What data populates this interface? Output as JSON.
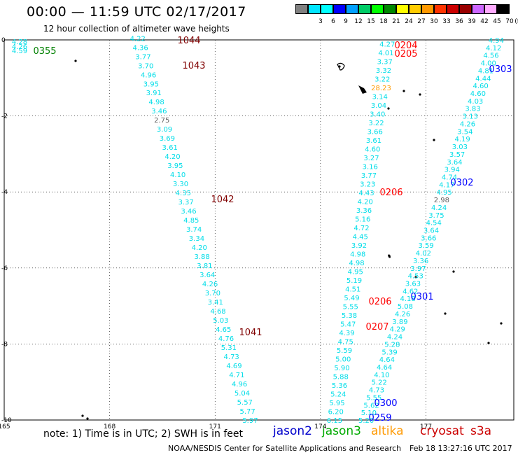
{
  "header": {
    "title": "00:00 — 11:59 UTC 02/17/2017",
    "subtitle": "12 hour collection of altimeter wave heights"
  },
  "scale": {
    "unit": "(ft)",
    "bins": [
      {
        "label": "",
        "color": "#808080"
      },
      {
        "label": "3",
        "color": "#00e5ff"
      },
      {
        "label": "6",
        "color": "#00ffff"
      },
      {
        "label": "9",
        "color": "#0000ff"
      },
      {
        "label": "12",
        "color": "#00a0ff"
      },
      {
        "label": "15",
        "color": "#00cc66"
      },
      {
        "label": "18",
        "color": "#00ff00"
      },
      {
        "label": "21",
        "color": "#008800"
      },
      {
        "label": "24",
        "color": "#ffff00"
      },
      {
        "label": "27",
        "color": "#ffcc00"
      },
      {
        "label": "30",
        "color": "#ff9900"
      },
      {
        "label": "33",
        "color": "#ff3300"
      },
      {
        "label": "36",
        "color": "#cc0000"
      },
      {
        "label": "39",
        "color": "#990000"
      },
      {
        "label": "42",
        "color": "#cc66ff"
      },
      {
        "label": "45",
        "color": "#ffaaff"
      },
      {
        "label": "70",
        "color": "#000000"
      }
    ]
  },
  "axes": {
    "x_ticks": [
      "165",
      "168",
      "171",
      "174",
      "177"
    ],
    "y_ticks": [
      "0",
      "-2",
      "-4",
      "-6",
      "-8",
      "-10"
    ],
    "x_range": [
      165,
      179.5
    ],
    "y_range": [
      0,
      -10
    ],
    "grid": true
  },
  "tracks": [
    {
      "satellite": "jason2",
      "lon_start": 168.8,
      "lat_start": 0.05,
      "lon_end": 172.0,
      "lat_end": -10.0,
      "values": [
        "4.22",
        "4.36",
        "3.77",
        "3.70",
        "4.96",
        "3.95",
        "3.91",
        "4.98",
        "3.46",
        "2.75",
        "3.09",
        "3.69",
        "3.61",
        "4.20",
        "3.95",
        "4.10",
        "3.30",
        "4.35",
        "3.37",
        "3.46",
        "4.85",
        "3.74",
        "3.34",
        "4.20",
        "3.88",
        "3.81",
        "3.64",
        "4.26",
        "3.70",
        "3.41",
        "4.68",
        "5.03",
        "4.65",
        "4.76",
        "5.31",
        "4.73",
        "4.69",
        "4.71",
        "4.96",
        "5.04",
        "5.57",
        "5.77",
        "5.97"
      ]
    },
    {
      "satellite": "jason2",
      "lon_start": 175.9,
      "lat_start": -0.1,
      "lon_end": 174.4,
      "lat_end": -10.0,
      "values": [
        "4.27",
        "4.01",
        "3.37",
        "3.32",
        "3.22",
        "28.23",
        "3.14",
        "3.04",
        "3.40",
        "3.22",
        "3.66",
        "3.61",
        "4.60",
        "3.27",
        "3.16",
        "3.77",
        "3.23",
        "4.43",
        "4.20",
        "3.36",
        "5.16",
        "4.72",
        "4.45",
        "3.92",
        "4.98",
        "4.98",
        "4.95",
        "5.19",
        "4.51",
        "5.49",
        "5.55",
        "5.38",
        "5.47",
        "4.39",
        "4.75",
        "5.59",
        "5.00",
        "5.90",
        "5.88",
        "5.36",
        "5.24",
        "5.95",
        "6.20",
        "6.15"
      ]
    },
    {
      "satellite": "jason2",
      "lon_start": 179.0,
      "lat_start": 0.0,
      "lon_end": 175.3,
      "lat_end": -10.0,
      "values": [
        "4.94",
        "4.12",
        "4.56",
        "4.00",
        "4.81",
        "4.44",
        "4.60",
        "4.60",
        "4.03",
        "3.83",
        "3.13",
        "4.26",
        "3.54",
        "4.19",
        "3.03",
        "3.57",
        "3.64",
        "3.94",
        "4.74",
        "4.17",
        "4.95",
        "2.98",
        "4.24",
        "3.75",
        "4.54",
        "3.64",
        "3.66",
        "3.59",
        "4.02",
        "3.36",
        "3.97",
        "4.53",
        "3.63",
        "4.62",
        "4.18",
        "5.08",
        "4.26",
        "3.89",
        "4.29",
        "4.24",
        "5.28",
        "5.39",
        "4.64",
        "4.64",
        "4.10",
        "5.22",
        "4.73",
        "5.55",
        "5.62",
        "5.10",
        "5.20"
      ]
    }
  ],
  "pass_labels": [
    {
      "text": "1044",
      "color": "#800000"
    },
    {
      "text": "1043",
      "color": "#800000"
    },
    {
      "text": "1042",
      "color": "#800000"
    },
    {
      "text": "1041",
      "color": "#800000"
    },
    {
      "text": "0355",
      "color": "#008000"
    },
    {
      "text": "0204",
      "color": "#ff0000"
    },
    {
      "text": "0205",
      "color": "#ff0000"
    },
    {
      "text": "0206",
      "color": "#ff0000"
    },
    {
      "text": "0206",
      "color": "#ff0000"
    },
    {
      "text": "0207",
      "color": "#ff0000"
    },
    {
      "text": "0303",
      "color": "#0000ff"
    },
    {
      "text": "0302",
      "color": "#0000ff"
    },
    {
      "text": "0301",
      "color": "#0000ff"
    },
    {
      "text": "0300",
      "color": "#0000ff"
    },
    {
      "text": "0259",
      "color": "#0000ff"
    }
  ],
  "corner_values": [
    "4.28",
    "4.26",
    "4.59"
  ],
  "footer": {
    "note": "note: 1) Time is in UTC; 2) SWH is in feet",
    "satellites": [
      {
        "name": "jason2",
        "color": "#0000cc"
      },
      {
        "name": "jason3",
        "color": "#00aa00"
      },
      {
        "name": "altika",
        "color": "#ff9900"
      },
      {
        "name": "cryosat",
        "color": "#cc0000"
      },
      {
        "name": "s3a",
        "color": "#cc0000"
      }
    ],
    "credit": "NOAA/NESDIS Center for Satellite Applications and Research",
    "timestamp": "Feb 18 13:27:16 UTC 2017"
  }
}
